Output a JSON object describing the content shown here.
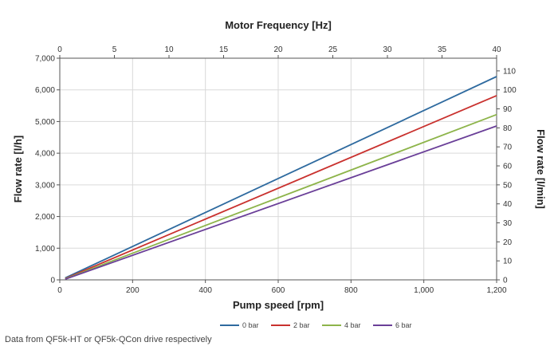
{
  "chart_data": {
    "type": "line",
    "x_axis": {
      "label": "Pump speed [rpm]",
      "range": [
        0,
        1200
      ],
      "ticks": [
        0,
        200,
        400,
        600,
        800,
        1000,
        1200
      ],
      "tick_labels": [
        "0",
        "200",
        "400",
        "600",
        "800",
        "1,000",
        "1,200"
      ]
    },
    "x2_axis": {
      "label": "Motor Frequency [Hz]",
      "range": [
        0,
        40
      ],
      "ticks": [
        0,
        5,
        10,
        15,
        20,
        25,
        30,
        35,
        40
      ],
      "tick_labels": [
        "0",
        "5",
        "10",
        "15",
        "20",
        "25",
        "30",
        "35",
        "40"
      ]
    },
    "y_axis": {
      "label": "Flow rate [l/h]",
      "range": [
        0,
        7000
      ],
      "ticks": [
        0,
        1000,
        2000,
        3000,
        4000,
        5000,
        6000,
        7000
      ],
      "tick_labels": [
        "0",
        "1,000",
        "2,000",
        "3,000",
        "4,000",
        "5,000",
        "6,000",
        "7,000"
      ]
    },
    "y2_axis": {
      "label": "Flow rate [l/min]",
      "range": [
        0,
        116.67
      ],
      "ticks": [
        0,
        10,
        20,
        30,
        40,
        50,
        60,
        70,
        80,
        90,
        100,
        110
      ],
      "tick_labels": [
        "0",
        "10",
        "20",
        "30",
        "40",
        "50",
        "60",
        "70",
        "80",
        "90",
        "100",
        "110"
      ]
    },
    "grid": true,
    "legend_position": "bottom-right",
    "series": [
      {
        "name": "0 bar",
        "color": "#2e6a9f",
        "x": [
          15,
          1200
        ],
        "y": [
          60,
          6420
        ]
      },
      {
        "name": "2 bar",
        "color": "#c9312e",
        "x": [
          15,
          1200
        ],
        "y": [
          40,
          5820
        ]
      },
      {
        "name": "4 bar",
        "color": "#8db44a",
        "x": [
          15,
          1200
        ],
        "y": [
          30,
          5220
        ]
      },
      {
        "name": "6 bar",
        "color": "#6a3f98",
        "x": [
          15,
          1200
        ],
        "y": [
          20,
          4860
        ]
      }
    ]
  },
  "footnote": "Data from QF5k-HT or QF5k-QCon drive respectively"
}
